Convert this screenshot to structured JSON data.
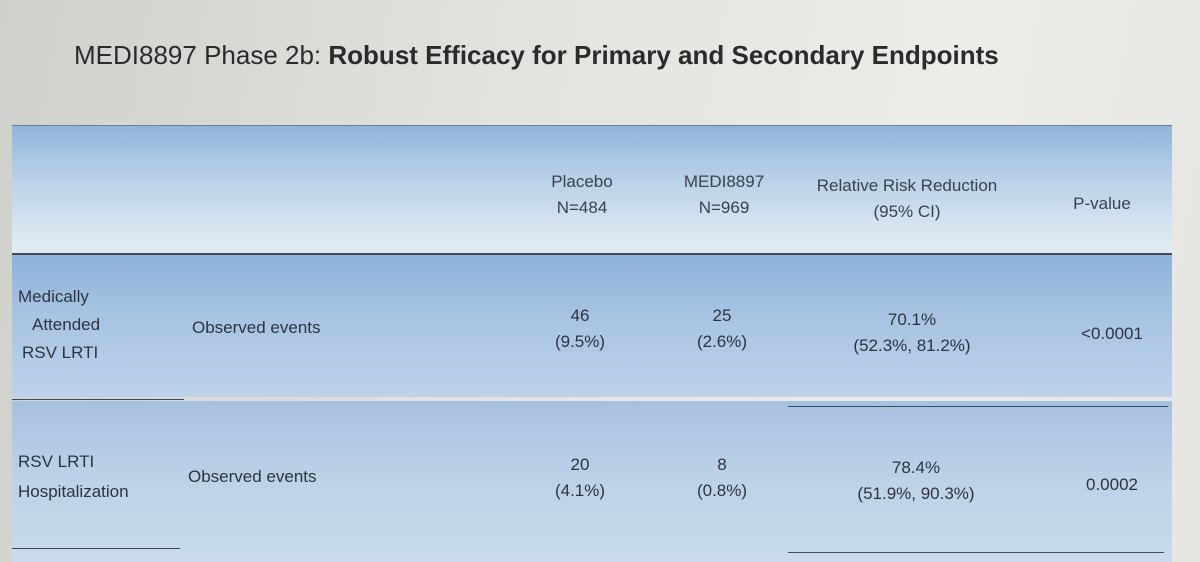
{
  "title": {
    "prefix": "MEDI8897 Phase 2b: ",
    "bold": "Robust Efficacy for Primary and Secondary Endpoints"
  },
  "table": {
    "headers": {
      "placebo": [
        "Placebo",
        "N=484"
      ],
      "medi": [
        "MEDI8897",
        "N=969"
      ],
      "rrr": [
        "Relative Risk Reduction",
        "(95% CI)"
      ],
      "pvalue": "P-value"
    },
    "rows": [
      {
        "endpoint": [
          "Medically",
          "Attended",
          "RSV LRTI"
        ],
        "measure": "Observed events",
        "placebo": [
          "46",
          "(9.5%)"
        ],
        "medi": [
          "25",
          "(2.6%)"
        ],
        "rrr": [
          "70.1%",
          "(52.3%, 81.2%)"
        ],
        "pvalue": "<0.0001"
      },
      {
        "endpoint": [
          "RSV LRTI",
          "Hospitalization"
        ],
        "measure": "Observed events",
        "placebo": [
          "20",
          "(4.1%)"
        ],
        "medi": [
          "8",
          "(0.8%)"
        ],
        "rrr": [
          "78.4%",
          "(51.9%, 90.3%)"
        ],
        "pvalue": "0.0002"
      }
    ]
  }
}
